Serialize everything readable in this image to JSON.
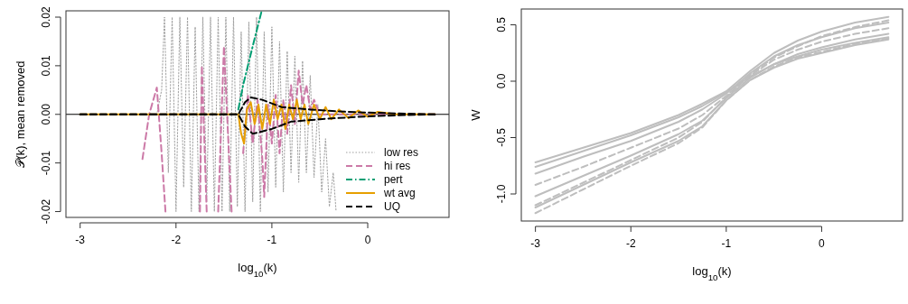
{
  "chart_data": [
    {
      "type": "line",
      "xlabel": "log$_{10}$(k)",
      "ylabel": "𝒫(k), mean removed",
      "xlim": [
        -3.148,
        0.848
      ],
      "ylim": [
        -0.0212,
        0.0213
      ],
      "xticks": [
        -3,
        -2,
        -1,
        0
      ],
      "yticks": [
        {
          "value": -0.02,
          "label": "-0.02"
        },
        {
          "value": -0.01,
          "label": "-0.01"
        },
        {
          "value": 0,
          "label": "0.00"
        },
        {
          "value": 0.01,
          "label": "0.01"
        },
        {
          "value": 0.02,
          "label": "0.02"
        }
      ],
      "legend": "bottom right",
      "ref_lines": [
        {
          "axis": "y",
          "value": 0,
          "color": "#000000",
          "line_style": "solid"
        }
      ],
      "series": [
        {
          "name": "low res",
          "color": "#a0a0a0",
          "line_style": "dotted",
          "x": [
            -3,
            -2.2,
            -2.15,
            -2.12,
            -2.08,
            -2.04,
            -2.0,
            -1.96,
            -1.92,
            -1.88,
            -1.84,
            -1.8,
            -1.76,
            -1.72,
            -1.68,
            -1.64,
            -1.6,
            -1.56,
            -1.52,
            -1.48,
            -1.44,
            -1.4,
            -1.36,
            -1.32,
            -1.28,
            -1.24,
            -1.2,
            -1.16,
            -1.12,
            -1.08,
            -1.04,
            -1.0,
            -0.96,
            -0.92,
            -0.88,
            -0.84,
            -0.8,
            -0.76,
            -0.72,
            -0.68,
            -0.64,
            -0.6,
            -0.56,
            -0.52,
            -0.48,
            -0.44,
            -0.4,
            -0.36,
            -0.33
          ],
          "values": [
            0,
            0,
            0.005,
            0.02,
            -0.012,
            0.02,
            -0.02,
            0.02,
            -0.015,
            0.02,
            -0.02,
            0.018,
            -0.02,
            0.02,
            -0.018,
            0.02,
            -0.02,
            0.02,
            -0.02,
            0.02,
            -0.02,
            0.02,
            -0.019,
            0.017,
            -0.02,
            0.019,
            -0.018,
            0.02,
            -0.02,
            0.017,
            -0.016,
            0.018,
            -0.015,
            0.015,
            -0.016,
            0.013,
            -0.012,
            0.012,
            -0.014,
            0.011,
            -0.012,
            0.008,
            -0.013,
            0.002,
            -0.016,
            -0.005,
            -0.019,
            -0.012,
            -0.02
          ]
        },
        {
          "name": "hi res",
          "color": "#cc79a7",
          "line_style": "dashed",
          "x": [
            -2.35,
            -2.28,
            -2.2,
            -2.15,
            -2.11
          ],
          "values": [
            -0.0092,
            0.0,
            0.0055,
            -0.008,
            -0.02
          ]
        },
        {
          "color": "#cc79a7",
          "line_style": "dashed",
          "x": [
            -1.75,
            -1.73,
            -1.68
          ],
          "values": [
            -0.02,
            0.01,
            -0.02
          ]
        },
        {
          "color": "#cc79a7",
          "line_style": "dashed",
          "x": [
            -1.56,
            -1.5,
            -1.42
          ],
          "values": [
            -0.02,
            0.014,
            -0.02
          ]
        },
        {
          "color": "#cc79a7",
          "line_style": "dashed",
          "x": [
            -1.3,
            -1.25,
            -1.2,
            -1.15,
            -1.1,
            -1.08,
            -1.04,
            -1.0,
            -0.96,
            -0.92,
            -0.88,
            -0.84,
            -0.8,
            -0.76,
            -0.72,
            -0.68,
            -0.64,
            -0.6,
            -0.56,
            -0.5,
            0.7
          ],
          "values": [
            -0.008,
            0.004,
            -0.006,
            0.003,
            -0.009,
            -0.017,
            0.002,
            -0.006,
            0.004,
            -0.008,
            0.003,
            -0.004,
            0.006,
            -0.002,
            0.009,
            0.002,
            0.006,
            0.001,
            0.003,
            0,
            0
          ]
        },
        {
          "name": "pert",
          "color": "#009e73",
          "line_style": "dashdot",
          "x": [
            -1.35,
            -1.3,
            -1.2,
            -1.11
          ],
          "values": [
            0.001,
            0.006,
            0.014,
            0.021
          ]
        },
        {
          "name": "wt avg",
          "color": "#e69f00",
          "line_style": "solid",
          "x": [
            -3,
            -1.35,
            -1.32,
            -1.29,
            -1.26,
            -1.22,
            -1.18,
            -1.14,
            -1.1,
            -1.06,
            -1.02,
            -0.98,
            -0.94,
            -0.9,
            -0.86,
            -0.82,
            -0.78,
            -0.74,
            -0.7,
            -0.66,
            -0.62,
            -0.56,
            -0.5,
            -0.44,
            -0.38,
            -0.3,
            -0.2,
            -0.1,
            0,
            0.1,
            0.3,
            0.7
          ],
          "values": [
            0,
            0,
            -0.004,
            -0.006,
            0.001,
            0.0025,
            -0.002,
            0.002,
            -0.003,
            0.002,
            -0.002,
            0.003,
            -0.001,
            0.002,
            -0.003,
            0.002,
            -0.001,
            0.003,
            -0.001,
            0.002,
            -0.002,
            0.002,
            -0.001,
            0.0015,
            -0.001,
            0.001,
            -0.0008,
            0.0008,
            -0.0005,
            0.0005,
            0,
            0
          ]
        },
        {
          "name": "UQ",
          "color": "#000000",
          "line_style": "dashed",
          "x": [
            -3,
            -1.35,
            -1.28,
            -1.22,
            -1.1,
            -0.9,
            -0.6,
            -0.2,
            0.3,
            0.7
          ],
          "values": [
            0,
            0,
            0.0025,
            0.0035,
            0.003,
            0.0015,
            0.001,
            0.0005,
            0.0002,
            0
          ]
        },
        {
          "color": "#000000",
          "line_style": "dashed",
          "x": [
            -3,
            -1.35,
            -1.28,
            -1.2,
            -1.0,
            -0.8,
            -0.5,
            -0.1,
            0.3,
            0.7
          ],
          "values": [
            0,
            0,
            -0.0025,
            -0.004,
            -0.003,
            -0.0015,
            -0.001,
            -0.0005,
            -0.0002,
            0
          ]
        }
      ]
    },
    {
      "type": "line",
      "xlabel": "log$_{10}$(k)",
      "ylabel": "W",
      "xlim": [
        -3.148,
        0.848
      ],
      "ylim": [
        -1.24,
        0.64
      ],
      "xticks": [
        -3,
        -2,
        -1,
        0
      ],
      "yticks": [
        {
          "value": -1,
          "label": "-1.0"
        },
        {
          "value": -0.5,
          "label": "-0.5"
        },
        {
          "value": 0,
          "label": "0.0"
        },
        {
          "value": 0.5,
          "label": "0.5"
        }
      ],
      "x": [
        -3,
        -2.5,
        -2,
        -1.5,
        -1.25,
        -1,
        -0.75,
        -0.5,
        -0.25,
        0,
        0.35,
        0.7
      ],
      "series": [
        {
          "color": "#bebebe",
          "line_style": "solid",
          "values": [
            -1.12,
            -0.92,
            -0.72,
            -0.53,
            -0.4,
            -0.17,
            0.01,
            0.12,
            0.2,
            0.25,
            0.32,
            0.37
          ]
        },
        {
          "color": "#bebebe",
          "line_style": "solid",
          "values": [
            -1.02,
            -0.84,
            -0.66,
            -0.47,
            -0.35,
            -0.15,
            0.03,
            0.15,
            0.24,
            0.3,
            0.37,
            0.42
          ]
        },
        {
          "color": "#bebebe",
          "line_style": "dashed",
          "values": [
            -0.92,
            -0.76,
            -0.59,
            -0.42,
            -0.3,
            -0.13,
            0.05,
            0.19,
            0.28,
            0.35,
            0.42,
            0.47
          ]
        },
        {
          "color": "#bebebe",
          "line_style": "solid",
          "values": [
            -0.82,
            -0.67,
            -0.53,
            -0.36,
            -0.25,
            -0.11,
            0.07,
            0.22,
            0.32,
            0.39,
            0.47,
            0.52
          ]
        },
        {
          "color": "#bebebe",
          "line_style": "solid",
          "values": [
            -0.72,
            -0.59,
            -0.46,
            -0.3,
            -0.2,
            -0.09,
            0.09,
            0.25,
            0.36,
            0.44,
            0.52,
            0.57
          ]
        },
        {
          "color": "#bebebe",
          "line_style": "dashed",
          "values": [
            -1.1,
            -0.9,
            -0.7,
            -0.5,
            -0.36,
            -0.14,
            0.06,
            0.21,
            0.31,
            0.4,
            0.48,
            0.54
          ]
        },
        {
          "color": "#bebebe",
          "line_style": "solid",
          "values": [
            -0.76,
            -0.62,
            -0.48,
            -0.32,
            -0.22,
            -0.1,
            0.04,
            0.15,
            0.22,
            0.28,
            0.34,
            0.39
          ]
        },
        {
          "color": "#bebebe",
          "line_style": "dashed",
          "values": [
            -1.17,
            -0.96,
            -0.75,
            -0.55,
            -0.41,
            -0.17,
            0.01,
            0.13,
            0.21,
            0.26,
            0.33,
            0.38
          ]
        }
      ]
    }
  ]
}
